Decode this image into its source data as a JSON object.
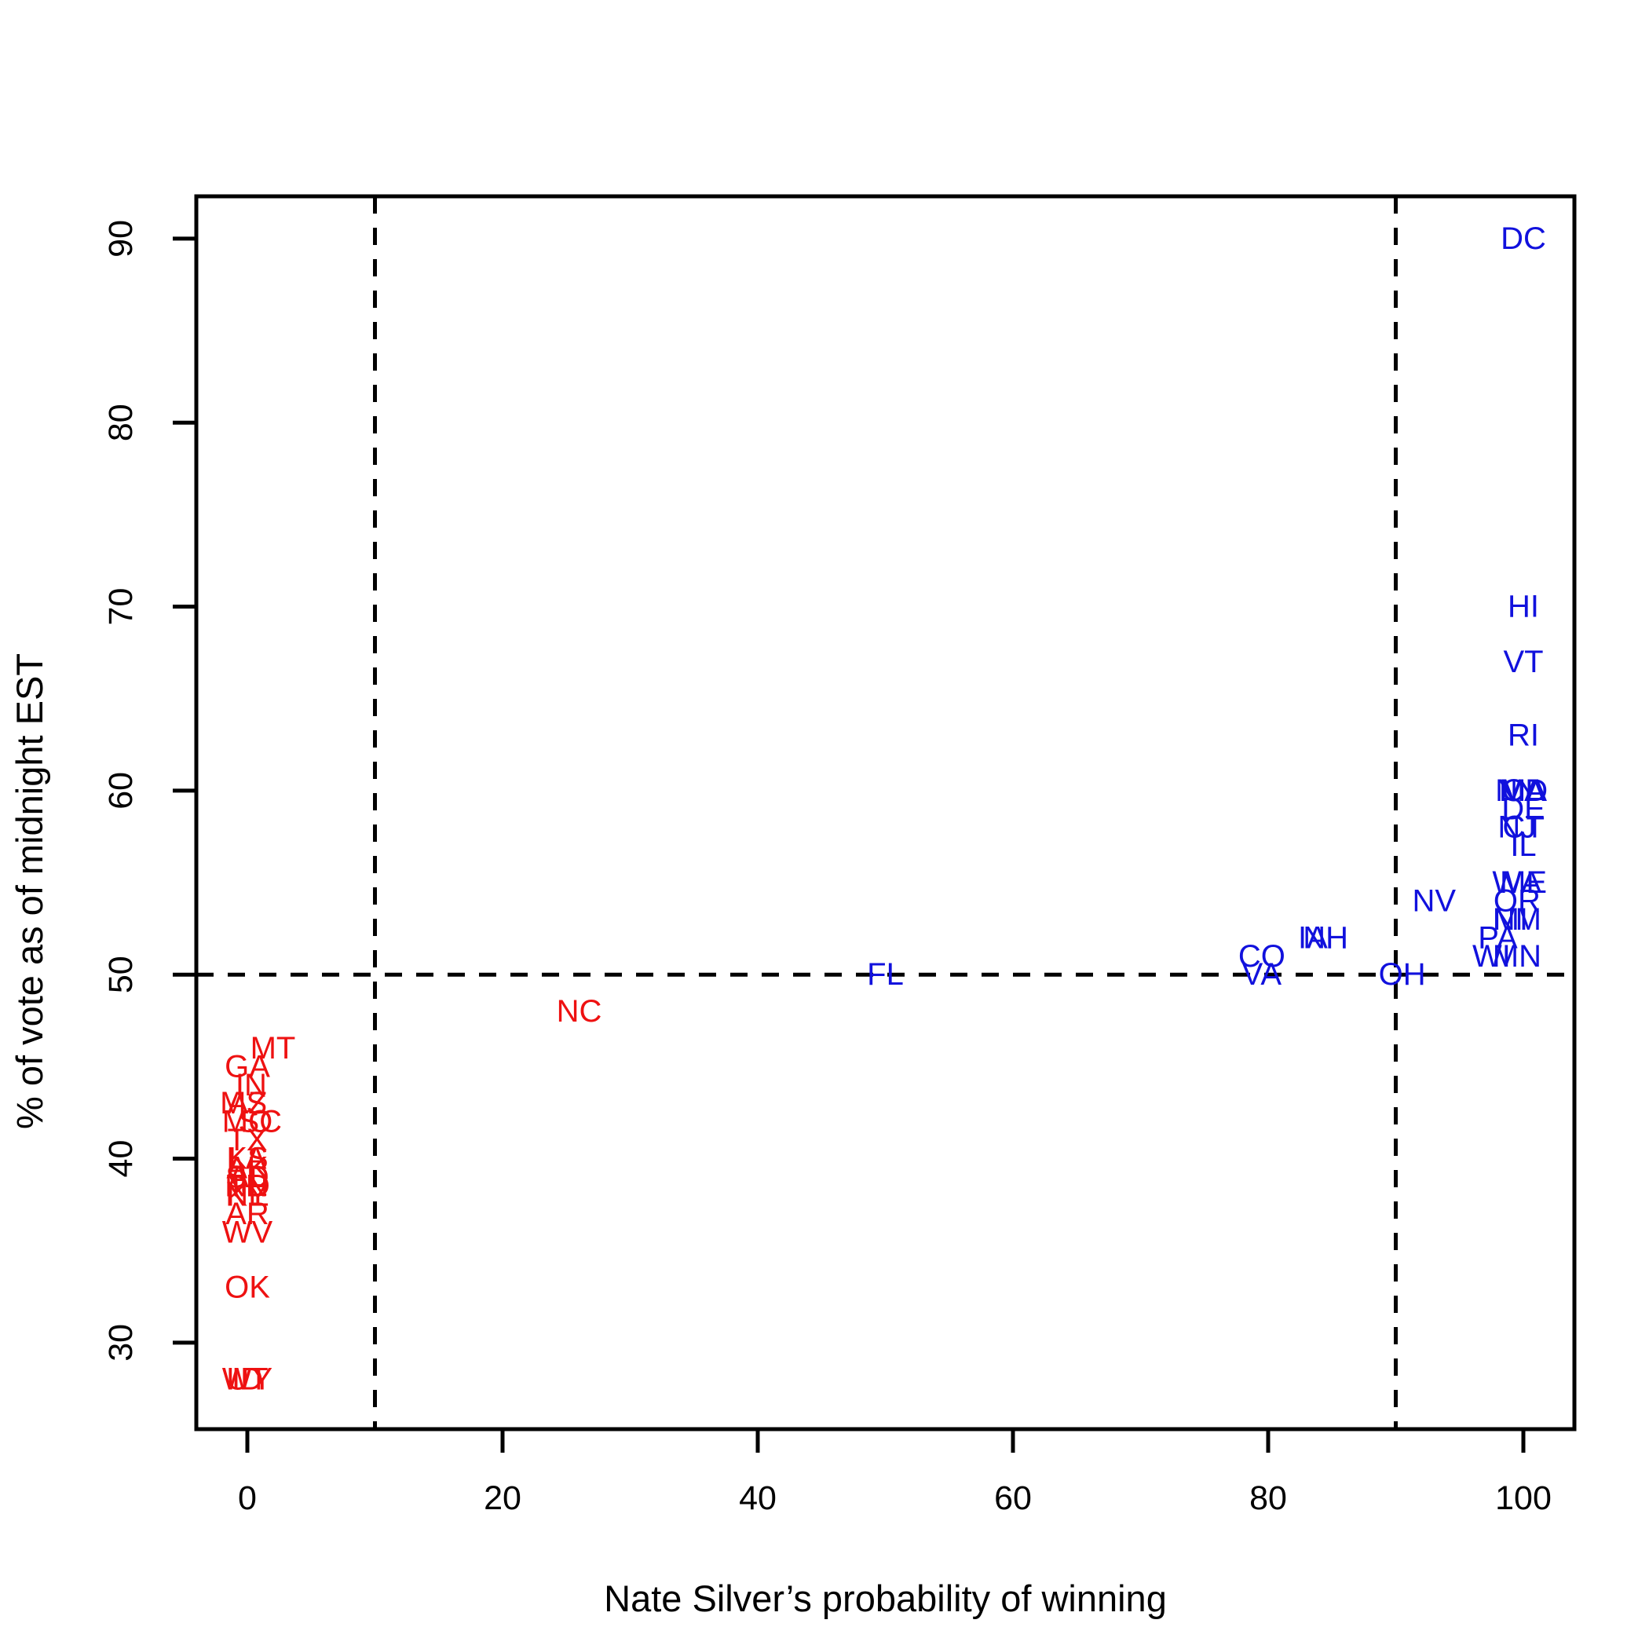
{
  "chart_data": {
    "type": "scatter",
    "title": "",
    "xlabel": "Nate Silver’s probability of winning",
    "ylabel": "% of vote as of midnight EST",
    "xlim": [
      -4,
      104
    ],
    "ylim": [
      25.3,
      92.3
    ],
    "x_ticks": [
      0,
      20,
      40,
      60,
      80,
      100
    ],
    "y_ticks": [
      30,
      40,
      50,
      60,
      70,
      80,
      90
    ],
    "grid": false,
    "reference_lines": {
      "vertical": [
        10,
        90
      ],
      "horizontal": [
        50
      ],
      "style": "dashed"
    },
    "colors": {
      "red": "#ee1111",
      "blue": "#1111dd",
      "axis": "#000000"
    },
    "series": [
      {
        "color": "red",
        "points": [
          {
            "label": "MT",
            "x": 2,
            "y": 46
          },
          {
            "label": "GA",
            "x": 0,
            "y": 45
          },
          {
            "label": "IN",
            "x": 0.3,
            "y": 44
          },
          {
            "label": "MS",
            "x": -0.3,
            "y": 43
          },
          {
            "label": "AZ",
            "x": 0,
            "y": 43
          },
          {
            "label": "SC",
            "x": 1,
            "y": 42
          },
          {
            "label": "MO",
            "x": 0,
            "y": 42
          },
          {
            "label": "TX",
            "x": 0,
            "y": 41
          },
          {
            "label": "LA",
            "x": 0,
            "y": 40
          },
          {
            "label": "KS",
            "x": 0,
            "y": 40
          },
          {
            "label": "AK",
            "x": 0,
            "y": 39.5
          },
          {
            "label": "SD",
            "x": 0,
            "y": 39
          },
          {
            "label": "ND",
            "x": 0,
            "y": 38.5
          },
          {
            "label": "NE",
            "x": 0,
            "y": 38
          },
          {
            "label": "KY",
            "x": 0,
            "y": 38
          },
          {
            "label": "TN",
            "x": 0,
            "y": 38.5
          },
          {
            "label": "AL",
            "x": 0,
            "y": 39
          },
          {
            "label": "AR",
            "x": 0,
            "y": 37
          },
          {
            "label": "WV",
            "x": 0,
            "y": 36
          },
          {
            "label": "OK",
            "x": 0,
            "y": 33
          },
          {
            "label": "ID",
            "x": 0,
            "y": 28
          },
          {
            "label": "UT",
            "x": 0,
            "y": 28
          },
          {
            "label": "WY",
            "x": 0,
            "y": 28
          },
          {
            "label": "NC",
            "x": 26,
            "y": 48
          }
        ]
      },
      {
        "color": "blue",
        "points": [
          {
            "label": "DC",
            "x": 100,
            "y": 90
          },
          {
            "label": "HI",
            "x": 100,
            "y": 70
          },
          {
            "label": "VT",
            "x": 100,
            "y": 67
          },
          {
            "label": "RI",
            "x": 100,
            "y": 63
          },
          {
            "label": "NY",
            "x": 99.5,
            "y": 60
          },
          {
            "label": "MA",
            "x": 100,
            "y": 60
          },
          {
            "label": "MD",
            "x": 100,
            "y": 60
          },
          {
            "label": "CA",
            "x": 100,
            "y": 60
          },
          {
            "label": "DE",
            "x": 100,
            "y": 59
          },
          {
            "label": "NJ",
            "x": 99.5,
            "y": 58
          },
          {
            "label": "CT",
            "x": 100,
            "y": 58
          },
          {
            "label": "IL",
            "x": 100,
            "y": 57
          },
          {
            "label": "WA",
            "x": 99.5,
            "y": 55
          },
          {
            "label": "ME",
            "x": 100,
            "y": 55
          },
          {
            "label": "OR",
            "x": 99.5,
            "y": 54
          },
          {
            "label": "NM",
            "x": 99.5,
            "y": 53
          },
          {
            "label": "MI",
            "x": 99,
            "y": 53
          },
          {
            "label": "PA",
            "x": 98,
            "y": 52
          },
          {
            "label": "WI",
            "x": 97.5,
            "y": 51
          },
          {
            "label": "MN",
            "x": 99.5,
            "y": 51
          },
          {
            "label": "NV",
            "x": 93,
            "y": 54
          },
          {
            "label": "IA",
            "x": 83.5,
            "y": 52
          },
          {
            "label": "NH",
            "x": 84.5,
            "y": 52
          },
          {
            "label": "CO",
            "x": 79.5,
            "y": 51
          },
          {
            "label": "VA",
            "x": 79.5,
            "y": 50
          },
          {
            "label": "OH",
            "x": 90.5,
            "y": 50
          },
          {
            "label": "FL",
            "x": 50,
            "y": 50
          }
        ]
      }
    ]
  }
}
